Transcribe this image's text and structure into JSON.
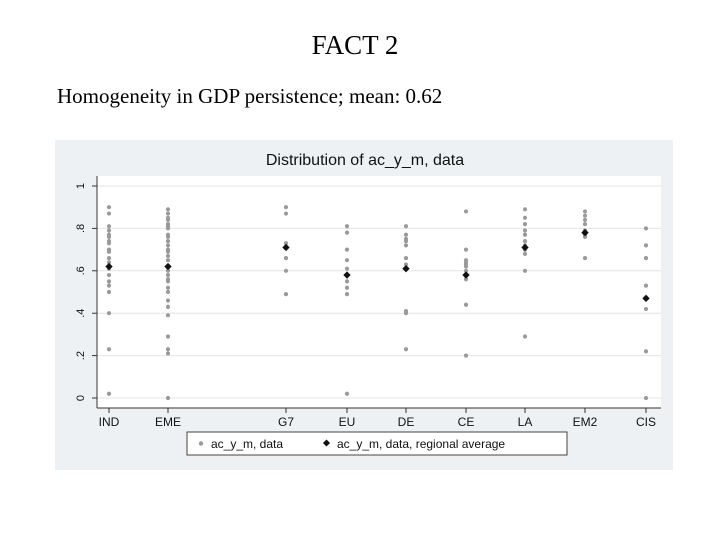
{
  "slide": {
    "title": "FACT 2",
    "subtitle": "Homogeneity in GDP persistence; mean: 0.62"
  },
  "chart_data": {
    "type": "scatter",
    "title": "Distribution of ac_y_m, data",
    "xlabel": "",
    "ylabel": "",
    "ylim": [
      0,
      1
    ],
    "yticks": [
      0,
      0.2,
      0.4,
      0.6,
      0.8,
      1
    ],
    "ytick_labels": [
      "0",
      ".2",
      ".4",
      ".6",
      ".8",
      "1"
    ],
    "grid": true,
    "legend_position": "bottom",
    "categories": [
      "IND",
      "EME",
      "G7",
      "EU",
      "DE",
      "CE",
      "LA",
      "EM2",
      "CIS"
    ],
    "series": [
      {
        "name": "ac_y_m, data",
        "color": "#9a9a9a",
        "marker": "dot",
        "points": {
          "IND": [
            0.9,
            0.87,
            0.81,
            0.79,
            0.77,
            0.76,
            0.74,
            0.73,
            0.7,
            0.69,
            0.66,
            0.64,
            0.62,
            0.61,
            0.58,
            0.55,
            0.53,
            0.5,
            0.4,
            0.23,
            0.02
          ],
          "EME": [
            0.89,
            0.87,
            0.85,
            0.84,
            0.82,
            0.81,
            0.8,
            0.77,
            0.76,
            0.74,
            0.72,
            0.7,
            0.69,
            0.67,
            0.65,
            0.62,
            0.6,
            0.58,
            0.56,
            0.55,
            0.52,
            0.5,
            0.46,
            0.43,
            0.39,
            0.29,
            0.23,
            0.21,
            0.0
          ],
          "G7": [
            0.9,
            0.87,
            0.73,
            0.66,
            0.6,
            0.49
          ],
          "EU": [
            0.81,
            0.78,
            0.7,
            0.65,
            0.61,
            0.58,
            0.55,
            0.52,
            0.49,
            0.02
          ],
          "DE": [
            0.81,
            0.77,
            0.75,
            0.74,
            0.72,
            0.66,
            0.63,
            0.41,
            0.4,
            0.23
          ],
          "CE": [
            0.88,
            0.7,
            0.65,
            0.64,
            0.63,
            0.62,
            0.6,
            0.58,
            0.56,
            0.44,
            0.2
          ],
          "LA": [
            0.89,
            0.85,
            0.82,
            0.79,
            0.77,
            0.74,
            0.72,
            0.7,
            0.68,
            0.6,
            0.29
          ],
          "EM2": [
            0.88,
            0.86,
            0.84,
            0.82,
            0.79,
            0.77,
            0.76,
            0.66
          ],
          "CIS": [
            0.8,
            0.72,
            0.66,
            0.53,
            0.42,
            0.22,
            0.0
          ]
        }
      },
      {
        "name": "ac_y_m, data, regional average",
        "color": "#111111",
        "marker": "diamond",
        "values": [
          0.62,
          0.62,
          0.71,
          0.58,
          0.61,
          0.58,
          0.71,
          0.78,
          0.47
        ]
      }
    ]
  }
}
